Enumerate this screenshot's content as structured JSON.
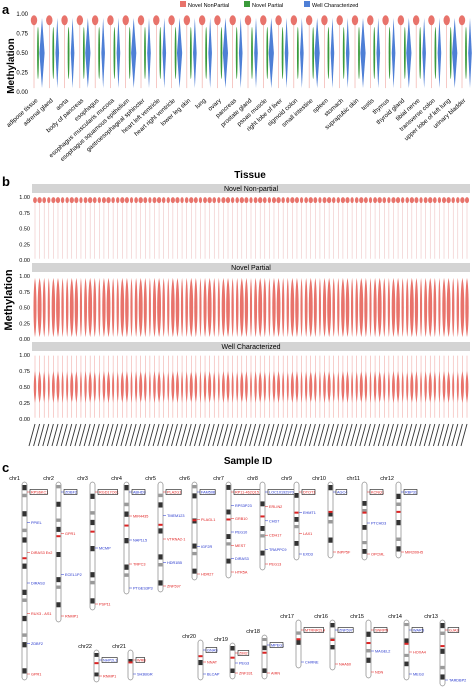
{
  "panel_a": {
    "letter": "a",
    "legend": [
      "Novel NonPartial",
      "Novel Partial",
      "Well Characterized"
    ],
    "ylabel": "Methylation",
    "xlabel": "Tissue",
    "yticks": [
      "1.00",
      "0.75",
      "0.50",
      "0.25",
      "0.00"
    ],
    "tissues": [
      "adipose tissue",
      "adrenal gland",
      "aorta",
      "body of pancreas",
      "esophagus",
      "esophagus muscularis mucosa",
      "esophagus squamous epithelium",
      "gastroesophageal sphincter",
      "heart left ventricle",
      "heart right ventricle",
      "lower leg skin",
      "lung",
      "ovary",
      "pancreas",
      "prostate gland",
      "psoas muscle",
      "right lobe of liver",
      "sigmoid colon",
      "small intestine",
      "spleen",
      "stomach",
      "suprapubic skin",
      "testis",
      "thymus",
      "thyroid gland",
      "tibial nerve",
      "transverse colon",
      "upper lobe of left lung",
      "urinary bladder"
    ]
  },
  "panel_b": {
    "letter": "b",
    "ylabel": "Methylation",
    "xlabel": "Sample ID",
    "yticks": [
      "1.00",
      "0.75",
      "0.50",
      "0.25",
      "0.00"
    ],
    "facets": [
      "Novel Non-partial",
      "Novel Partial",
      "Well Characterized"
    ]
  },
  "panel_c": {
    "letter": "c",
    "chromosomes": [
      "chr1",
      "chr2",
      "chr3",
      "chr4",
      "chr5",
      "chr6",
      "chr7",
      "chr8",
      "chr9",
      "chr10",
      "chr11",
      "chr12",
      "chr13",
      "chr14",
      "chr15",
      "chr16",
      "chr17",
      "chr18",
      "chr19",
      "chr20",
      "chr21",
      "chr22"
    ],
    "genes": [
      {
        "chr": "chr1",
        "name": "RPS6KC1"
      },
      {
        "chr": "chr1",
        "name": "PPIEL"
      },
      {
        "chr": "chr1",
        "name": "DIRAS3 Ex2"
      },
      {
        "chr": "chr1",
        "name": "DIRAS3"
      },
      {
        "chr": "chr1",
        "name": "RUX3 - AS1"
      },
      {
        "chr": "chr1",
        "name": "ZDBF2"
      },
      {
        "chr": "chr1",
        "name": "GPR1"
      },
      {
        "chr": "chr2",
        "name": "ZDBF2"
      },
      {
        "chr": "chr2",
        "name": "GPR1"
      },
      {
        "chr": "chr2",
        "name": "ECEL1P2"
      },
      {
        "chr": "chr2",
        "name": "RNMP1"
      },
      {
        "chr": "chr3",
        "name": "RGD17O01"
      },
      {
        "chr": "chr3",
        "name": "MCMP"
      },
      {
        "chr": "chr3",
        "name": "PSP11"
      },
      {
        "chr": "chr4",
        "name": "ABHD9"
      },
      {
        "chr": "chr4",
        "name": "MIR4435"
      },
      {
        "chr": "chr4",
        "name": "NAP1L5"
      },
      {
        "chr": "chr4",
        "name": "TRPC3"
      },
      {
        "chr": "chr4",
        "name": "PTGES3P3"
      },
      {
        "chr": "chr5",
        "name": "PLA2G1"
      },
      {
        "chr": "chr5",
        "name": "TMEM123"
      },
      {
        "chr": "chr5",
        "name": "VTRNA2-1"
      },
      {
        "chr": "chr5",
        "name": "HDR1B5"
      },
      {
        "chr": "chr5",
        "name": "ZNF597"
      },
      {
        "chr": "chr6",
        "name": "FAM50B"
      },
      {
        "chr": "chr6",
        "name": "PLAGL1"
      },
      {
        "chr": "chr6",
        "name": "IGF2R"
      },
      {
        "chr": "chr6",
        "name": "HDR27"
      },
      {
        "chr": "chr7",
        "name": "RP11-462Q15.1"
      },
      {
        "chr": "chr7",
        "name": "RPS3P23"
      },
      {
        "chr": "chr7",
        "name": "GRB10"
      },
      {
        "chr": "chr7",
        "name": "PEG10"
      },
      {
        "chr": "chr7",
        "name": "MEST"
      },
      {
        "chr": "chr7",
        "name": "DIRAS3"
      },
      {
        "chr": "chr7",
        "name": "HTR5A"
      },
      {
        "chr": "chr8",
        "name": "LOC101929705"
      },
      {
        "chr": "chr8",
        "name": "ERLIN2"
      },
      {
        "chr": "chr8",
        "name": "CHD7"
      },
      {
        "chr": "chr8",
        "name": "CDH17"
      },
      {
        "chr": "chr8",
        "name": "TRAPPC9"
      },
      {
        "chr": "chr8",
        "name": "PEG13"
      },
      {
        "chr": "chr9",
        "name": "DTOT1"
      },
      {
        "chr": "chr9",
        "name": "EHMT1"
      },
      {
        "chr": "chr9",
        "name": "LAX1"
      },
      {
        "chr": "chr9",
        "name": "EXD3"
      },
      {
        "chr": "chr10",
        "name": "AGC4"
      },
      {
        "chr": "chr10",
        "name": "INPP5F"
      },
      {
        "chr": "chr11",
        "name": "KCNQ1"
      },
      {
        "chr": "chr11",
        "name": "PTCHD3"
      },
      {
        "chr": "chr11",
        "name": "OPCML"
      },
      {
        "chr": "chr12",
        "name": "RBP31"
      },
      {
        "chr": "chr12",
        "name": "MIR200H5"
      },
      {
        "chr": "chr13",
        "name": "GJA3"
      },
      {
        "chr": "chr13",
        "name": "TARDBP2"
      },
      {
        "chr": "chr14",
        "name": "WARS"
      },
      {
        "chr": "chr14",
        "name": "HOXA4"
      },
      {
        "chr": "chr14",
        "name": "MEG3"
      },
      {
        "chr": "chr15",
        "name": "SNRPN"
      },
      {
        "chr": "chr15",
        "name": "MAGEL2"
      },
      {
        "chr": "chr15",
        "name": "NDN"
      },
      {
        "chr": "chr16",
        "name": "ZNF597"
      },
      {
        "chr": "chr16",
        "name": "NAA60"
      },
      {
        "chr": "chr17",
        "name": "MTRNR2L4"
      },
      {
        "chr": "chr17",
        "name": "CHRNE"
      },
      {
        "chr": "chr18",
        "name": "MPEG1"
      },
      {
        "chr": "chr18",
        "name": "AIRN"
      },
      {
        "chr": "chr19",
        "name": "ZIM2"
      },
      {
        "chr": "chr19",
        "name": "PEG3"
      },
      {
        "chr": "chr19",
        "name": "ZNF331"
      },
      {
        "chr": "chr20",
        "name": "GNAS"
      },
      {
        "chr": "chr20",
        "name": "NNAT"
      },
      {
        "chr": "chr20",
        "name": "BLCAP"
      },
      {
        "chr": "chr21",
        "name": "WRB"
      },
      {
        "chr": "chr21",
        "name": "SH3BGR"
      },
      {
        "chr": "chr22",
        "name": "NHP2L1"
      },
      {
        "chr": "chr22",
        "name": "RNMP1"
      }
    ]
  },
  "colors": {
    "nonpartial": "#e8736b",
    "partial": "#3a9a3a",
    "well": "#4e7fd6",
    "red_text": "#e02020",
    "blue_text": "#2233cc",
    "strip": "#d4d4d4"
  },
  "chart_data": [
    {
      "type": "violin",
      "panel": "a",
      "ylabel": "Methylation",
      "xlabel": "Tissue",
      "ylim": [
        0,
        1
      ],
      "legend_position": "top",
      "categories": [
        "adipose tissue",
        "adrenal gland",
        "aorta",
        "body of pancreas",
        "esophagus",
        "esophagus muscularis mucosa",
        "esophagus squamous epithelium",
        "gastroesophageal sphincter",
        "heart left ventricle",
        "heart right ventricle",
        "lower leg skin",
        "lung",
        "ovary",
        "pancreas",
        "prostate gland",
        "psoas muscle",
        "right lobe of liver",
        "sigmoid colon",
        "small intestine",
        "spleen",
        "stomach",
        "suprapubic skin",
        "testis",
        "thymus",
        "thyroid gland",
        "tibial nerve",
        "transverse colon",
        "upper lobe of left lung",
        "urinary bladder"
      ],
      "series": [
        {
          "name": "Novel NonPartial",
          "median_approx": 0.93
        },
        {
          "name": "Novel Partial",
          "median_approx": 0.5
        },
        {
          "name": "Well Characterized",
          "median_approx": 0.5
        }
      ]
    },
    {
      "type": "violin",
      "panel": "b",
      "ylabel": "Methylation",
      "xlabel": "Sample ID",
      "ylim": [
        0,
        1
      ],
      "facets": [
        {
          "name": "Novel Non-partial",
          "mode_approx": 0.95
        },
        {
          "name": "Novel Partial",
          "mode_approx": 0.5
        },
        {
          "name": "Well Characterized",
          "mode_approx": 0.5
        }
      ]
    }
  ]
}
